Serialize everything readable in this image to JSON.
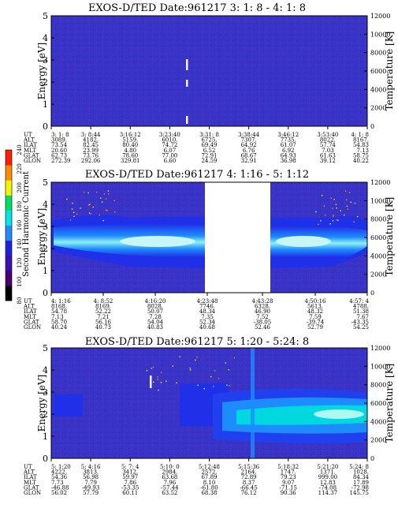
{
  "chart_data": [
    {
      "type": "heatmap",
      "title": "EXOS-D/TED    Date:961217  3: 1: 8 - 4: 1: 8",
      "ylabel": "Energy [eV]",
      "y2label": "Temperature [K]",
      "ylim": [
        0,
        5
      ],
      "y2lim": [
        0,
        12000
      ],
      "yticks": [
        "0",
        "1",
        "2",
        "3",
        "4",
        "5"
      ],
      "y2ticks": [
        "0",
        "2000",
        "4000",
        "6000",
        "8000",
        "10000",
        "12000"
      ],
      "orbit_row_labels": [
        "UT",
        "ALT",
        "ILAT",
        "MLT",
        "GLAT",
        "GLON"
      ],
      "orbit_columns": [
        [
          "3: 1: 8",
          "3089.",
          "73.54",
          "20.60",
          "62.73",
          "272.39"
        ],
        [
          "3: 8:44",
          "4182.",
          "82.45",
          "23.99",
          "73.76",
          "292.06"
        ],
        [
          "3:16:12",
          "5159.",
          "80.40",
          "4.80",
          "78.60",
          "329.81"
        ],
        [
          "3:23:40",
          "6010.",
          "74.72",
          "6.07",
          "77.00",
          "6.60"
        ],
        [
          "3:31: 8",
          "6725.",
          "69.49",
          "6.52",
          "72.91",
          "24.59"
        ],
        [
          "3:38:44",
          "7307.",
          "64.92",
          "6.76",
          "68.67",
          "32.91"
        ],
        [
          "3:46:12",
          "7735.",
          "61.07",
          "6.92",
          "64.93",
          "36.98"
        ],
        [
          "3:53:40",
          "8022.",
          "57.74",
          "7.03",
          "61.63",
          "39.12"
        ],
        [
          "4: 1: 8",
          "8167.",
          "54.83",
          "7.13",
          "58.75",
          "40.22"
        ]
      ]
    },
    {
      "type": "heatmap",
      "title": "EXOS-D/TED    Date:961217  4: 1:16 - 5: 1:12",
      "ylabel": "Energy [eV]",
      "y2label": "Temperature [K]",
      "ylim": [
        0,
        5
      ],
      "y2lim": [
        0,
        12000
      ],
      "yticks": [
        "0",
        "1",
        "2",
        "3",
        "4",
        "5"
      ],
      "y2ticks": [
        "0",
        "2000",
        "4000",
        "6000",
        "8000",
        "10000",
        "12000"
      ],
      "data_gap": true,
      "orbit_row_labels": [
        "UT",
        "ALT",
        "ILAT",
        "MLT",
        "GLAT",
        "GLON"
      ],
      "orbit_columns": [
        [
          "4: 1:16",
          "8168.",
          "54.78",
          "7.13",
          "58.70",
          "40.24"
        ],
        [
          "4: 8:52",
          "8169.",
          "52.22",
          "7.21",
          "56.16",
          "40.73"
        ],
        [
          "4:16:20",
          "8028.",
          "50.07",
          "7.28",
          "54.04",
          "40.83"
        ],
        [
          "4:23:48",
          "7746.",
          "48.34",
          "7.35",
          "52.34",
          "40.68"
        ],
        [
          "4:43:28",
          "6328.",
          "46.90",
          "7.52",
          "-38.05",
          "52.46"
        ],
        [
          "4:50:16",
          "5613.",
          "48.32",
          "7.59",
          "-39.74",
          "52.79"
        ],
        [
          "4:57: 4",
          "4788.",
          "51.38",
          "7.67",
          "-43.35",
          "54.25"
        ]
      ]
    },
    {
      "type": "heatmap",
      "title": "EXOS-D/TED    Date:961217  5: 1:20 - 5:24: 8",
      "ylabel": "Energy [eV]",
      "y2label": "Temperature [K]",
      "ylim": [
        0,
        5
      ],
      "y2lim": [
        0,
        12000
      ],
      "yticks": [
        "0",
        "1",
        "2",
        "3",
        "4",
        "5"
      ],
      "y2ticks": [
        "0",
        "2000",
        "4000",
        "6000",
        "8000",
        "10000",
        "12000"
      ],
      "orbit_row_labels": [
        "UT",
        "ALT",
        "ILAT",
        "MLT",
        "GLAT",
        "GLON"
      ],
      "orbit_columns": [
        [
          "5: 1:20",
          "4222.",
          "54.36",
          "7.73",
          "-46.88",
          "56.02"
        ],
        [
          "5: 4:16",
          "3813.",
          "56.98",
          "7.79",
          "-49.93",
          "57.79"
        ],
        [
          "5: 7: 4",
          "3412.",
          "59.97",
          "7.86",
          "-53.35",
          "60.11"
        ],
        [
          "5:10: 0",
          "2984.",
          "63.68",
          "7.96",
          "-57.44",
          "63.52"
        ],
        [
          "5:12:48",
          "2572.",
          "67.89",
          "8.10",
          "-61.80",
          "68.38"
        ],
        [
          "5:15:36",
          "2164.",
          "72.89",
          "8.37",
          "-66.45",
          "76.12"
        ],
        [
          "5:18:32",
          "1747.",
          "79.23",
          "9.07",
          "-71.15",
          "90.36"
        ],
        [
          "5:21:20",
          "1371.",
          "999.00",
          "12.83",
          "-74.08",
          "114.37"
        ],
        [
          "5:24: 8",
          "1028.",
          "84.34",
          "17.89",
          "-72.98",
          "145.75"
        ]
      ]
    }
  ],
  "colorbar": {
    "label": "Second Harmonic Current",
    "ticks": [
      "80",
      "100",
      "120",
      "140",
      "160",
      "180",
      "200",
      "220",
      "240"
    ],
    "colors": [
      "#000000",
      "#4a0070",
      "#3a10b0",
      "#2020e0",
      "#1e8cff",
      "#00e5e5",
      "#00e060",
      "#f5f500",
      "#ff8c00",
      "#ff1e00"
    ]
  }
}
